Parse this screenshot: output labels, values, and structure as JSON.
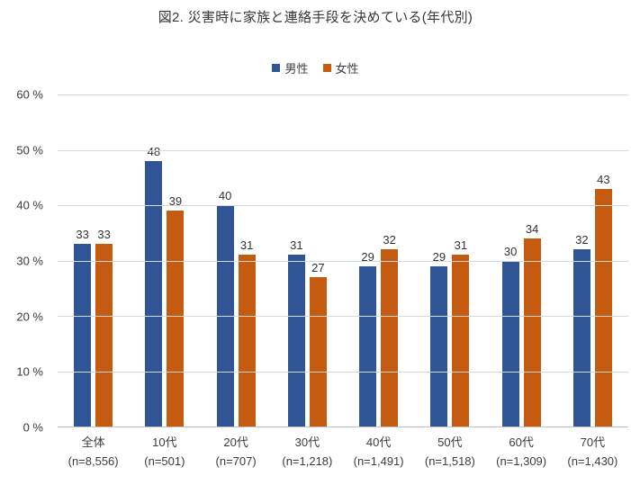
{
  "chart_data": {
    "type": "bar",
    "title": "図2. 災害時に家族と連絡手段を決めている(年代別)",
    "categories": [
      "全体",
      "10代",
      "20代",
      "30代",
      "40代",
      "50代",
      "60代",
      "70代"
    ],
    "category_sublabels": [
      "(n=8,556)",
      "(n=501)",
      "(n=707)",
      "(n=1,218)",
      "(n=1,491)",
      "(n=1,518)",
      "(n=1,309)",
      "(n=1,430)"
    ],
    "series": [
      {
        "name": "男性",
        "color": "#2F5597",
        "values": [
          33,
          48,
          40,
          31,
          29,
          29,
          30,
          32
        ]
      },
      {
        "name": "女性",
        "color": "#C55A11",
        "values": [
          33,
          39,
          31,
          27,
          32,
          31,
          34,
          43
        ]
      }
    ],
    "y_ticks": [
      0,
      10,
      20,
      30,
      40,
      50,
      60
    ],
    "y_tick_suffix": " %",
    "ylim": [
      0,
      60
    ],
    "grid": true,
    "legend_position": "top",
    "xlabel": "",
    "ylabel": ""
  },
  "colors": {
    "male_bar": "#2F5597",
    "female_bar": "#C55A11",
    "gridline": "#D9D9D9",
    "axis_line": "#BFBFBF",
    "text": "#3C3C3C",
    "background": "#FFFFFF"
  }
}
